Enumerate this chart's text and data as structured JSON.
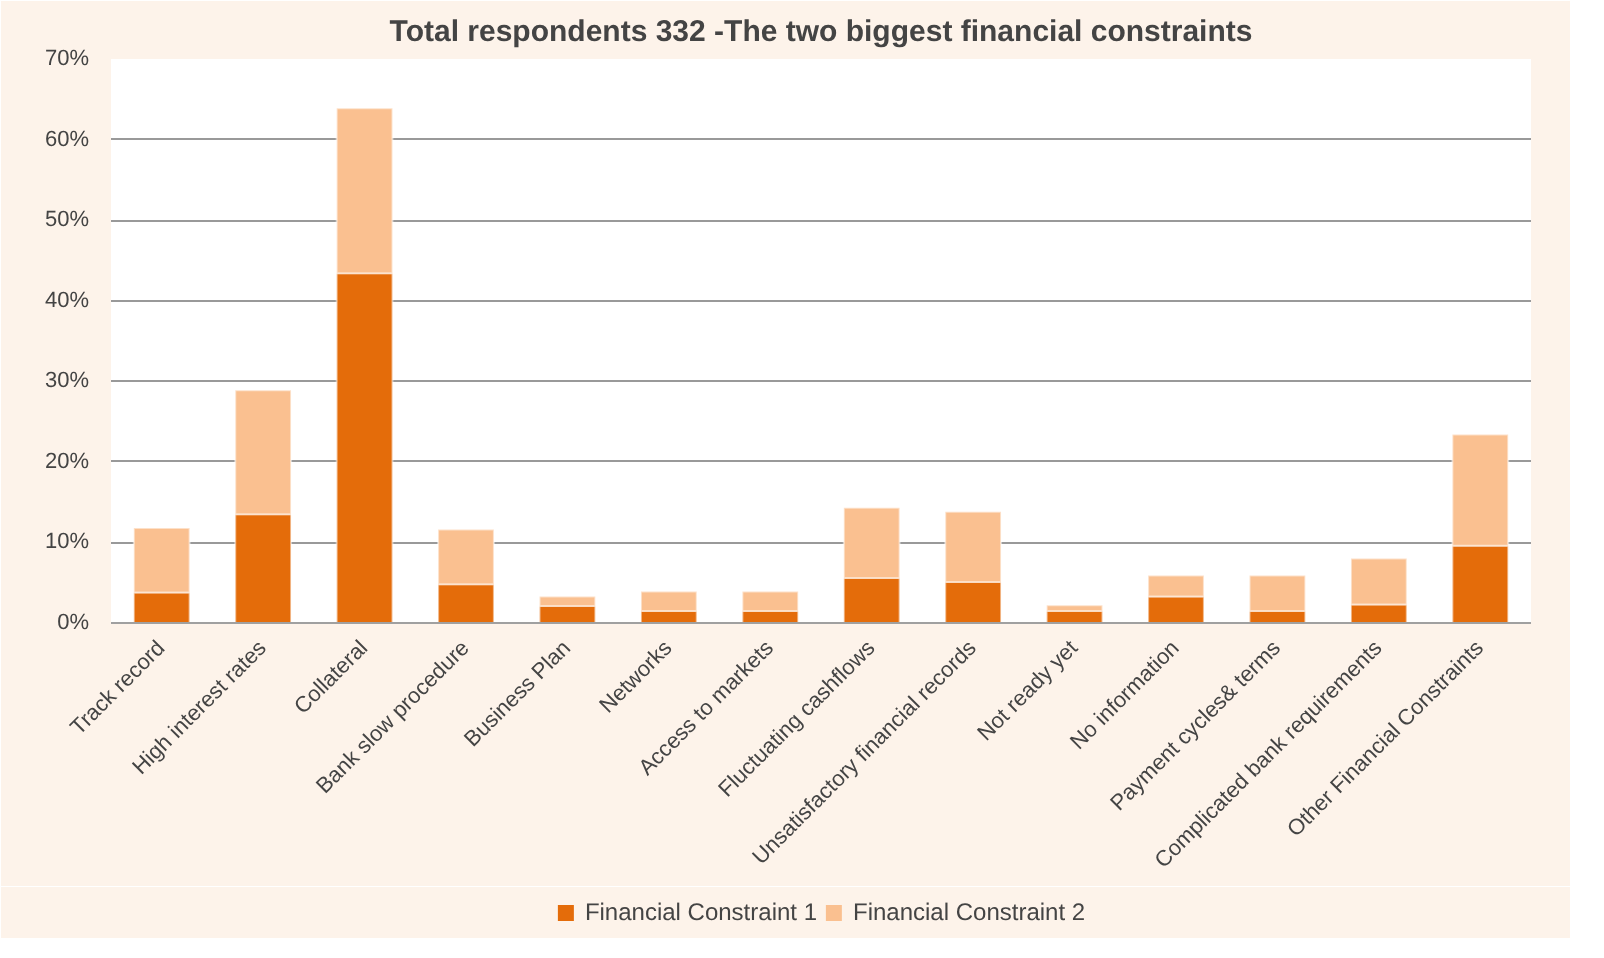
{
  "chart_data": {
    "type": "bar",
    "title": "Total respondents 332 -The two biggest financial constraints",
    "stacked": true,
    "categories": [
      "Track record",
      "High interest rates",
      "Collateral",
      "Bank slow procedure",
      "Business Plan",
      "Networks",
      "Access to markets",
      "Fluctuating cashflows",
      "Unsatisfactory financial records",
      "Not ready yet",
      "No information",
      "Payment cycles& terms",
      "Complicated bank requirements",
      "Other Financial Constraints"
    ],
    "series": [
      {
        "name": "Financial Constraint 1",
        "color": "#e46c0a",
        "values": [
          3.8,
          13.5,
          43.4,
          4.8,
          2.1,
          1.5,
          1.5,
          5.6,
          5.1,
          1.5,
          3.3,
          1.5,
          2.3,
          9.6
        ]
      },
      {
        "name": "Financial Constraint 2",
        "color": "#fac090",
        "values": [
          8.0,
          15.4,
          20.5,
          6.8,
          1.2,
          2.4,
          2.4,
          8.7,
          8.7,
          0.7,
          2.6,
          4.4,
          5.7,
          13.8
        ]
      }
    ],
    "ylim": [
      0,
      70
    ],
    "yticks": [
      {
        "value": 0,
        "label": "0%"
      },
      {
        "value": 10,
        "label": "10%"
      },
      {
        "value": 20,
        "label": "20%"
      },
      {
        "value": 30,
        "label": "30%"
      },
      {
        "value": 40,
        "label": "40%"
      },
      {
        "value": 50,
        "label": "50%"
      },
      {
        "value": 60,
        "label": "60%"
      },
      {
        "value": 70,
        "label": "70%"
      }
    ],
    "grid": "y",
    "legend": "bottom"
  }
}
